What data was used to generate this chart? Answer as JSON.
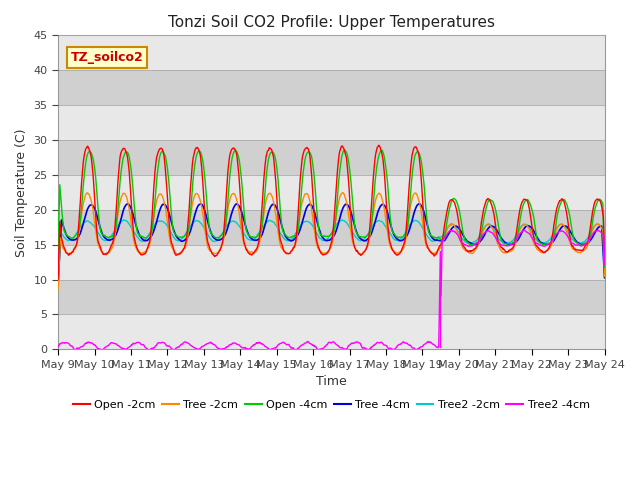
{
  "title": "Tonzi Soil CO2 Profile: Upper Temperatures",
  "xlabel": "Time",
  "ylabel": "Soil Temperature (C)",
  "ylim": [
    0,
    45
  ],
  "watermark_text": "TZ_soilco2",
  "x_tick_labels": [
    "May 9",
    "May 10",
    "May 11",
    "May 12",
    "May 13",
    "May 14",
    "May 15",
    "May 16",
    "May 17",
    "May 18",
    "May 19",
    "May 20",
    "May 21",
    "May 22",
    "May 23",
    "May 24"
  ],
  "series_colors": {
    "Open -2cm": "#ff0000",
    "Tree -2cm": "#ff8800",
    "Open -4cm": "#00cc00",
    "Tree -4cm": "#0000dd",
    "Tree2 -2cm": "#00cccc",
    "Tree2 -4cm": "#ff00ff"
  },
  "title_fontsize": 11,
  "axis_label_fontsize": 9,
  "tick_fontsize": 8,
  "num_points": 960,
  "transition_day": 10.5,
  "band_colors": [
    "#e8e8e8",
    "#d0d0d0"
  ]
}
